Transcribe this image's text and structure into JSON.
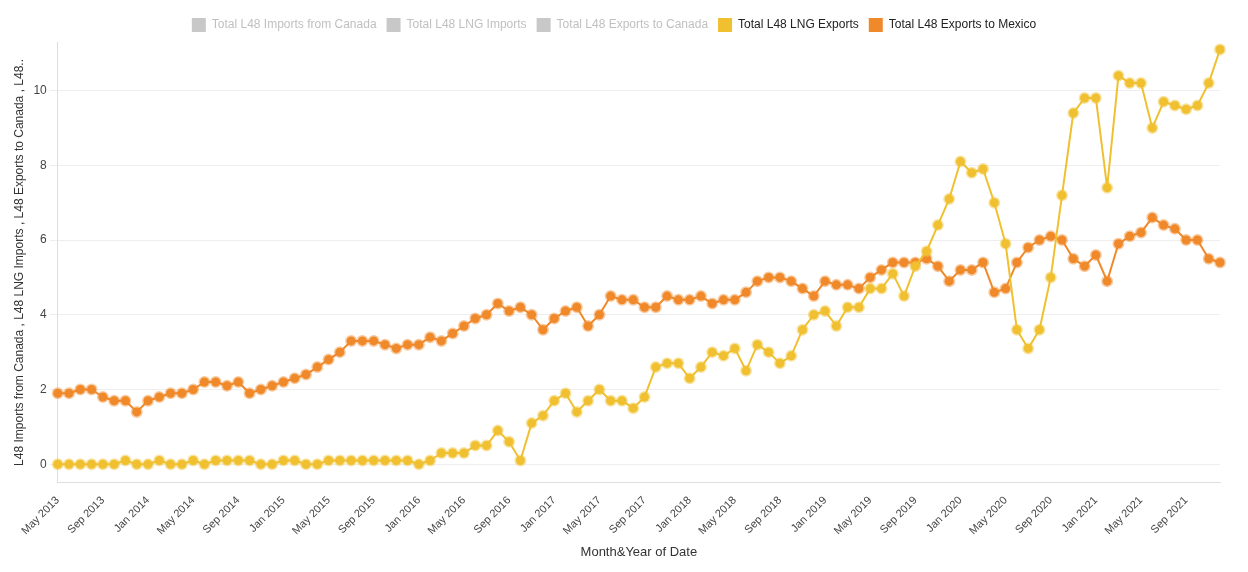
{
  "chart_data": {
    "type": "line",
    "xlabel": "Month&Year of Date",
    "ylabel": "L48 Imports from Canada , L48 LNG Imports , L48 Exports to Canada , L48..",
    "categories": [
      "May 2013",
      null,
      null,
      null,
      "Sep 2013",
      null,
      null,
      null,
      "Jan 2014",
      null,
      null,
      null,
      "May 2014",
      null,
      null,
      null,
      "Sep 2014",
      null,
      null,
      null,
      "Jan 2015",
      null,
      null,
      null,
      "May 2015",
      null,
      null,
      null,
      "Sep 2015",
      null,
      null,
      null,
      "Jan 2016",
      null,
      null,
      null,
      "May 2016",
      null,
      null,
      null,
      "Sep 2016",
      null,
      null,
      null,
      "Jan 2017",
      null,
      null,
      null,
      "May 2017",
      null,
      null,
      null,
      "Sep 2017",
      null,
      null,
      null,
      "Jan 2018",
      null,
      null,
      null,
      "May 2018",
      null,
      null,
      null,
      "Sep 2018",
      null,
      null,
      null,
      "Jan 2019",
      null,
      null,
      null,
      "May 2019",
      null,
      null,
      null,
      "Sep 2019",
      null,
      null,
      null,
      "Jan 2020",
      null,
      null,
      null,
      "May 2020",
      null,
      null,
      null,
      "Sep 2020",
      null,
      null,
      null,
      "Jan 2021",
      null,
      null,
      null,
      "May 2021",
      null,
      null,
      null,
      "Sep 2021",
      null,
      null,
      null
    ],
    "series": [
      {
        "name": "Total L48 Imports from Canada",
        "color": "#c8c8c8",
        "values": [
          null,
          null,
          null,
          null,
          null,
          null,
          null,
          null,
          null,
          null,
          null,
          null,
          null,
          null,
          null,
          null,
          null,
          null,
          null,
          null,
          null,
          null,
          null,
          null,
          null,
          null,
          null,
          null,
          null,
          null,
          null,
          null,
          null,
          null,
          null,
          null,
          null,
          null,
          null,
          null,
          null,
          null,
          null,
          null,
          null,
          null,
          null,
          null,
          null,
          null,
          null,
          null,
          null,
          null,
          null,
          null,
          null,
          null,
          null,
          null,
          null,
          null,
          null,
          null,
          null,
          null,
          null,
          null,
          null,
          null,
          null,
          null,
          null,
          null,
          null,
          null,
          null,
          null,
          null,
          null,
          null,
          null,
          null,
          null,
          null,
          null,
          null,
          null,
          null,
          null,
          null,
          null,
          null,
          null,
          null,
          null,
          null,
          null,
          null,
          null,
          null,
          null,
          null,
          null
        ]
      },
      {
        "name": "Total L48 LNG Imports",
        "color": "#c8c8c8",
        "values": [
          null,
          null,
          null,
          null,
          null,
          null,
          null,
          null,
          null,
          null,
          null,
          null,
          null,
          null,
          null,
          null,
          null,
          null,
          null,
          null,
          null,
          null,
          null,
          null,
          null,
          null,
          null,
          null,
          null,
          null,
          null,
          null,
          null,
          null,
          null,
          null,
          null,
          null,
          null,
          null,
          null,
          null,
          null,
          null,
          null,
          null,
          null,
          null,
          null,
          null,
          null,
          null,
          null,
          null,
          null,
          null,
          null,
          null,
          null,
          null,
          null,
          null,
          null,
          null,
          null,
          null,
          null,
          null,
          null,
          null,
          null,
          null,
          null,
          null,
          null,
          null,
          null,
          null,
          null,
          null,
          null,
          null,
          null,
          null,
          null,
          null,
          null,
          null,
          null,
          null,
          null,
          null,
          null,
          null,
          null,
          null,
          null,
          null,
          null,
          null,
          null,
          null,
          null,
          null
        ]
      },
      {
        "name": "Total L48 Exports to Canada",
        "color": "#c8c8c8",
        "values": [
          null,
          null,
          null,
          null,
          null,
          null,
          null,
          null,
          null,
          null,
          null,
          null,
          null,
          null,
          null,
          null,
          null,
          null,
          null,
          null,
          null,
          null,
          null,
          null,
          null,
          null,
          null,
          null,
          null,
          null,
          null,
          null,
          null,
          null,
          null,
          null,
          null,
          null,
          null,
          null,
          null,
          null,
          null,
          null,
          null,
          null,
          null,
          null,
          null,
          null,
          null,
          null,
          null,
          null,
          null,
          null,
          null,
          null,
          null,
          null,
          null,
          null,
          null,
          null,
          null,
          null,
          null,
          null,
          null,
          null,
          null,
          null,
          null,
          null,
          null,
          null,
          null,
          null,
          null,
          null,
          null,
          null,
          null,
          null,
          null,
          null,
          null,
          null,
          null,
          null,
          null,
          null,
          null,
          null,
          null,
          null,
          null,
          null,
          null,
          null,
          null,
          null,
          null,
          null
        ]
      },
      {
        "name": "Total L48 LNG Exports",
        "color": "#f0c030",
        "values": [
          0,
          0,
          0,
          0,
          0,
          0,
          0.1,
          0,
          0,
          0.1,
          0,
          0,
          0.1,
          0,
          0.1,
          0.1,
          0.1,
          0.1,
          0,
          0,
          0.1,
          0.1,
          0,
          0,
          0.1,
          0.1,
          0.1,
          0.1,
          0.1,
          0.1,
          0.1,
          0.1,
          0,
          0.1,
          0.3,
          0.3,
          0.3,
          0.5,
          0.5,
          0.9,
          0.6,
          0.1,
          1.1,
          1.3,
          1.7,
          1.9,
          1.4,
          1.7,
          2.0,
          1.7,
          1.7,
          1.5,
          1.8,
          2.6,
          2.7,
          2.7,
          2.3,
          2.6,
          3.0,
          2.9,
          3.1,
          2.5,
          3.2,
          3.0,
          2.7,
          2.9,
          3.6,
          4.0,
          4.1,
          3.7,
          4.2,
          4.2,
          4.7,
          4.7,
          5.1,
          4.5,
          5.3,
          5.7,
          6.4,
          7.1,
          8.1,
          7.8,
          7.9,
          7.0,
          5.9,
          3.6,
          3.1,
          3.6,
          5.0,
          7.2,
          9.4,
          9.8,
          9.8,
          7.4,
          10.4,
          10.2,
          10.2,
          9.0,
          9.7,
          9.6,
          9.5,
          9.6,
          10.2,
          11.1
        ]
      },
      {
        "name": "Total L48 Exports to Mexico",
        "color": "#f0892a",
        "values": [
          1.9,
          1.9,
          2.0,
          2.0,
          1.8,
          1.7,
          1.7,
          1.4,
          1.7,
          1.8,
          1.9,
          1.9,
          2.0,
          2.2,
          2.2,
          2.1,
          2.2,
          1.9,
          2.0,
          2.1,
          2.2,
          2.3,
          2.4,
          2.6,
          2.8,
          3.0,
          3.3,
          3.3,
          3.3,
          3.2,
          3.1,
          3.2,
          3.2,
          3.4,
          3.3,
          3.5,
          3.7,
          3.9,
          4.0,
          4.3,
          4.1,
          4.2,
          4.0,
          3.6,
          3.9,
          4.1,
          4.2,
          3.7,
          4.0,
          4.5,
          4.4,
          4.4,
          4.2,
          4.2,
          4.5,
          4.4,
          4.4,
          4.5,
          4.3,
          4.4,
          4.4,
          4.6,
          4.9,
          5.0,
          5.0,
          4.9,
          4.7,
          4.5,
          4.9,
          4.8,
          4.8,
          4.7,
          5.0,
          5.2,
          5.4,
          5.4,
          5.4,
          5.5,
          5.3,
          4.9,
          5.2,
          5.2,
          5.4,
          4.6,
          4.7,
          5.4,
          5.8,
          6.0,
          6.1,
          6.0,
          5.5,
          5.3,
          5.6,
          4.9,
          5.9,
          6.1,
          6.2,
          6.6,
          6.4,
          6.3,
          6.0,
          6.0,
          5.5,
          5.4
        ]
      }
    ],
    "ylim": [
      -0.5,
      11.3
    ],
    "yticks": [
      0,
      2,
      4,
      6,
      8,
      10
    ],
    "grid": "y",
    "legend": "top",
    "marker": "circle",
    "line_style": "solid"
  }
}
